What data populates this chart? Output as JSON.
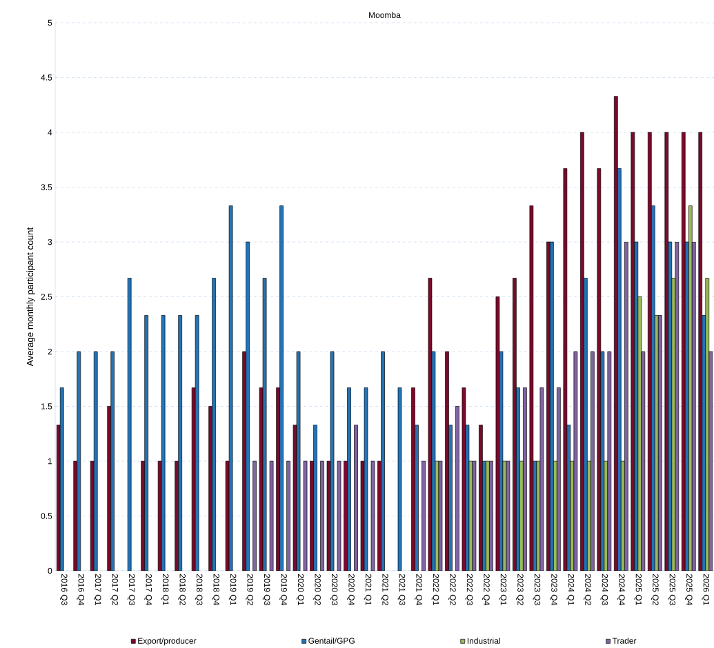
{
  "chart_data": {
    "type": "bar",
    "title": "Moomba",
    "ylabel": "Average monthly participant count",
    "categories": [
      "2016 Q3",
      "2016 Q4",
      "2017 Q1",
      "2017 Q2",
      "2017 Q3",
      "2017 Q4",
      "2018 Q1",
      "2018 Q2",
      "2018 Q3",
      "2018 Q4",
      "2019 Q1",
      "2019 Q2",
      "2019 Q3",
      "2019 Q4",
      "2020 Q1",
      "2020 Q2",
      "2020 Q3",
      "2020 Q4",
      "2021 Q1",
      "2021 Q2",
      "2021 Q3",
      "2021 Q4",
      "2022 Q1",
      "2022 Q2",
      "2022 Q3",
      "2022 Q4",
      "2023 Q1",
      "2023 Q2",
      "2023 Q3",
      "2023 Q4",
      "2024 Q1",
      "2024 Q2",
      "2024 Q3",
      "2024 Q4",
      "2025 Q1",
      "2025 Q2",
      "2025 Q3",
      "2025 Q4",
      "2026 Q1"
    ],
    "series": [
      {
        "name": "Export/producer",
        "color": "#7b0a2a",
        "values": [
          1.33,
          1,
          1,
          1.5,
          null,
          1,
          1,
          1,
          1.67,
          1.5,
          1,
          2,
          1.67,
          1.67,
          1.33,
          1,
          1,
          1,
          1,
          1,
          null,
          1.67,
          2.67,
          2,
          1.67,
          1.33,
          2.5,
          2.67,
          3.33,
          3,
          3.67,
          4,
          3.67,
          4.33,
          4,
          4,
          4,
          4,
          4
        ]
      },
      {
        "name": "Gentail/GPG",
        "color": "#2473b6",
        "values": [
          1.67,
          2,
          2,
          2,
          2.67,
          2.33,
          2.33,
          2.33,
          2.33,
          2.67,
          3.33,
          3,
          2.67,
          3.33,
          2,
          1.33,
          2,
          1.67,
          1.67,
          2,
          1.67,
          1.33,
          2,
          1.33,
          1.33,
          1,
          2,
          1.67,
          1,
          3,
          1.33,
          2.67,
          2,
          3.67,
          3,
          3.33,
          3,
          3,
          2.33
        ]
      },
      {
        "name": "Industrial",
        "color": "#9bbb59",
        "values": [
          null,
          null,
          null,
          null,
          null,
          null,
          null,
          null,
          null,
          null,
          null,
          null,
          null,
          null,
          null,
          null,
          null,
          null,
          null,
          null,
          null,
          null,
          1,
          null,
          1,
          1,
          1,
          1,
          1,
          1,
          1,
          1,
          1,
          1,
          2.5,
          2.33,
          2.67,
          3.33,
          2.67
        ]
      },
      {
        "name": "Trader",
        "color": "#8064a2",
        "values": [
          null,
          null,
          null,
          null,
          null,
          null,
          null,
          null,
          null,
          null,
          null,
          1,
          1,
          1,
          1,
          1,
          1,
          1.33,
          1,
          null,
          null,
          1,
          1,
          1.5,
          1,
          1,
          1,
          1.67,
          1.67,
          1.67,
          2,
          2,
          2,
          3,
          2,
          2.33,
          3,
          3,
          2
        ]
      }
    ],
    "ylim": [
      0,
      5
    ],
    "yticks": [
      0,
      0.5,
      1,
      1.5,
      2,
      2.5,
      3,
      3.5,
      4,
      4.5,
      5
    ],
    "grid": "y",
    "legend": "bottom"
  }
}
